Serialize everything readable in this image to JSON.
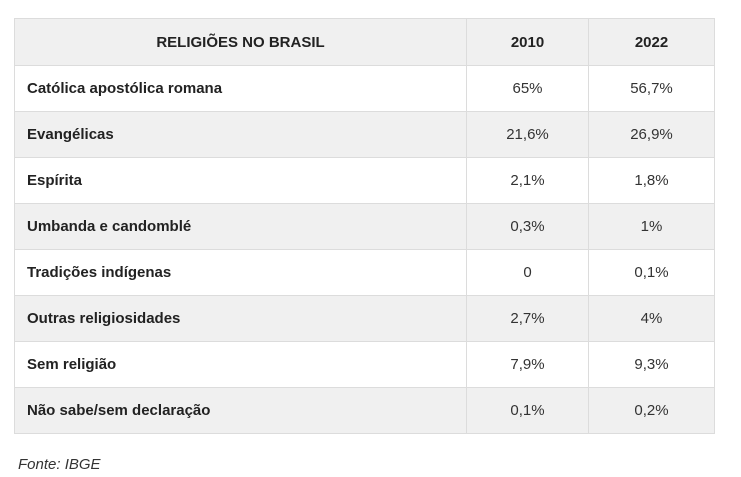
{
  "chart_data": {
    "type": "table",
    "columns": [
      "RELIGIÕES NO BRASIL",
      "2010",
      "2022"
    ],
    "rows": [
      {
        "label": "Católica apostólica romana",
        "values": [
          "65%",
          "56,7%"
        ]
      },
      {
        "label": "Evangélicas",
        "values": [
          "21,6%",
          "26,9%"
        ]
      },
      {
        "label": "Espírita",
        "values": [
          "2,1%",
          "1,8%"
        ]
      },
      {
        "label": "Umbanda e candomblé",
        "values": [
          "0,3%",
          "1%"
        ]
      },
      {
        "label": "Tradições indígenas",
        "values": [
          "0",
          "0,1%"
        ]
      },
      {
        "label": "Outras religiosidades",
        "values": [
          "2,7%",
          "4%"
        ]
      },
      {
        "label": "Sem religião",
        "values": [
          "7,9%",
          "9,3%"
        ]
      },
      {
        "label": "Não sabe/sem declaração",
        "values": [
          "0,1%",
          "0,2%"
        ]
      }
    ],
    "source": "Fonte: IBGE"
  },
  "colors": {
    "header_bg": "#f0f0f0",
    "stripe_bg": "#f0f0f0",
    "border": "#dcdcdc",
    "text": "#222222"
  }
}
